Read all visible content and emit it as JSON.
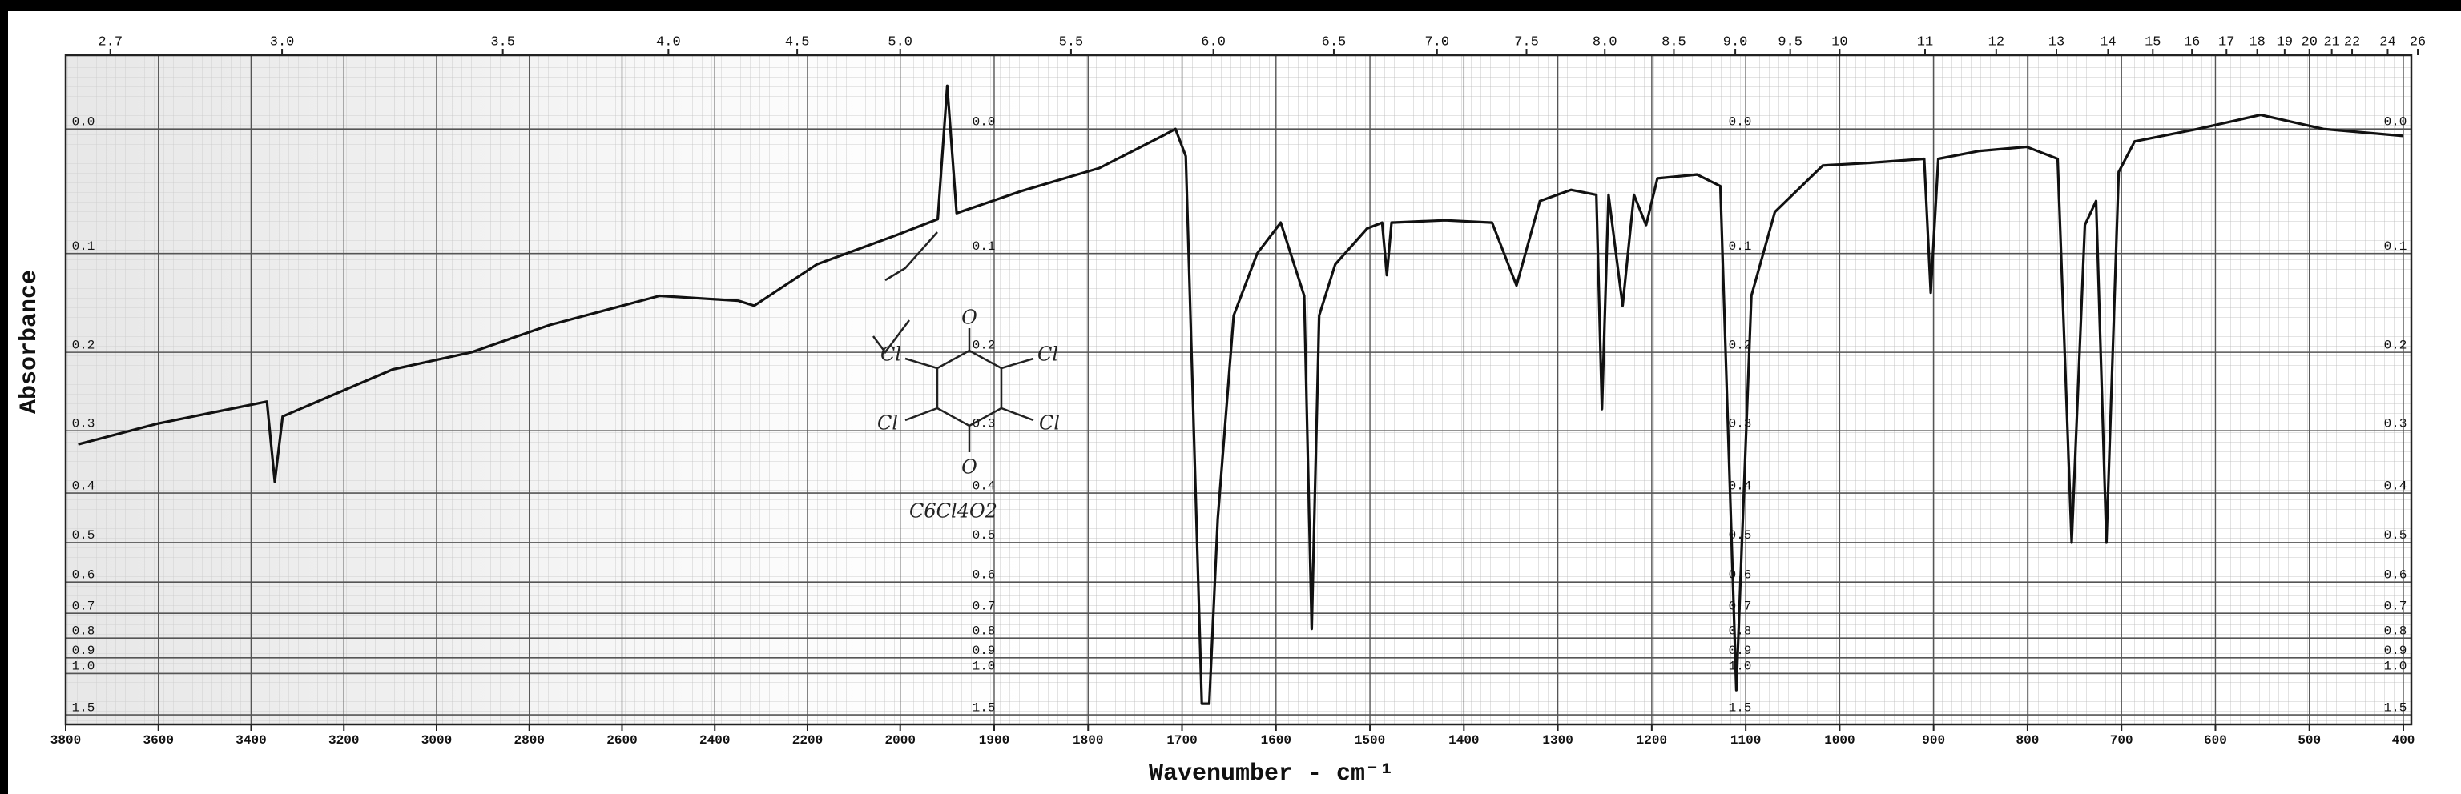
{
  "chart_data": {
    "type": "line",
    "y_label": "Absorbance",
    "x_label": "Wavenumber - cm⁻¹",
    "color": "#111111",
    "grid": true,
    "y_scale": "transmittance",
    "x_break": 2000,
    "xlim": [
      3800,
      400
    ],
    "xticks": [
      3800,
      3600,
      3400,
      3200,
      3000,
      2800,
      2600,
      2400,
      2200,
      2000,
      1900,
      1800,
      1700,
      1600,
      1500,
      1400,
      1300,
      1200,
      1100,
      1000,
      900,
      800,
      700,
      600,
      500,
      400
    ],
    "x2ticks": [
      2.7,
      {
        "value": 3,
        "label": "3.0"
      },
      3.5,
      {
        "value": 4,
        "label": "4.0"
      },
      4.5,
      {
        "value": 5,
        "label": "5.0"
      },
      5.5,
      {
        "value": 6,
        "label": "6.0"
      },
      6.5,
      {
        "value": 7,
        "label": "7.0"
      },
      7.5,
      {
        "value": 8,
        "label": "8.0"
      },
      8.5,
      {
        "value": 9,
        "label": "9.0"
      },
      9.5,
      10,
      11,
      12,
      13,
      14,
      15,
      16,
      17,
      18,
      19,
      20,
      21,
      22,
      24,
      26
    ],
    "ylim": [
      -0.05,
      1.8
    ],
    "yticks": [
      {
        "value": 0,
        "label": "0.0"
      },
      0.1,
      0.2,
      0.3,
      0.4,
      0.5,
      0.6,
      0.7,
      0.8,
      0.9,
      {
        "value": 1,
        "label": "1.0"
      },
      1.5
    ],
    "x": [
      3773,
      3603,
      3366,
      3349,
      3332,
      3095,
      2925,
      2756,
      2519,
      2349,
      2315,
      2180,
      2010,
      1960,
      1950,
      1940,
      1871,
      1788,
      1721,
      1707,
      1696,
      1679,
      1671,
      1662,
      1645,
      1620,
      1595,
      1570,
      1562,
      1554,
      1537,
      1503,
      1487,
      1482,
      1477,
      1420,
      1370,
      1344,
      1319,
      1286,
      1259,
      1253,
      1246,
      1231,
      1219,
      1206,
      1194,
      1152,
      1127,
      1110,
      1094,
      1069,
      1018,
      968,
      910,
      903,
      895,
      851,
      801,
      768,
      753,
      739,
      727,
      716,
      703,
      686,
      619,
      552,
      485,
      400
    ],
    "values": [
      0.32,
      0.29,
      0.26,
      0.38,
      0.28,
      0.22,
      0.2,
      0.17,
      0.14,
      0.145,
      0.15,
      0.11,
      0.084,
      0.07,
      -0.03,
      0.065,
      0.047,
      0.029,
      0.005,
      0,
      0.02,
      1.3,
      1.3,
      0.45,
      0.16,
      0.1,
      0.073,
      0.14,
      0.76,
      0.16,
      0.11,
      0.078,
      0.073,
      0.12,
      0.073,
      0.071,
      0.073,
      0.13,
      0.055,
      0.046,
      0.05,
      0.27,
      0.05,
      0.15,
      0.05,
      0.075,
      0.037,
      0.034,
      0.043,
      1.14,
      0.14,
      0.064,
      0.027,
      0.025,
      0.022,
      0.137,
      0.022,
      0.016,
      0.013,
      0.022,
      0.5,
      0.075,
      0.055,
      0.5,
      0.032,
      0.009,
      0,
      -0.01,
      0,
      0.005
    ],
    "annotations": [
      "O",
      "Cl",
      "Cl",
      "Cl",
      "Cl",
      "O",
      "C6Cl4O2"
    ]
  }
}
